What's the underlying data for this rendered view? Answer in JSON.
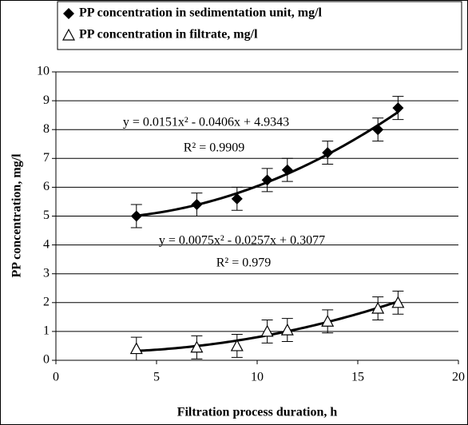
{
  "chart_data": {
    "type": "scatter",
    "x_label": "Filtration process duration, h",
    "y_label": "PP concentration, mg/l",
    "xlim": [
      0,
      20
    ],
    "xticks": [
      0,
      5,
      10,
      15,
      20
    ],
    "ylim": [
      0,
      10
    ],
    "yticks": [
      0,
      1,
      2,
      3,
      4,
      5,
      6,
      7,
      8,
      9,
      10
    ],
    "grid": true,
    "legend": "top",
    "series": [
      {
        "name": "PP concentration in sedimentation unit, mg/l",
        "marker": "diamond",
        "color": "#000000",
        "x": [
          4,
          7,
          9,
          10.5,
          11.5,
          13.5,
          16,
          17
        ],
        "values": [
          5.0,
          5.4,
          5.6,
          6.25,
          6.6,
          7.2,
          8.0,
          8.75
        ],
        "errors": [
          0.4,
          0.4,
          0.4,
          0.4,
          0.4,
          0.4,
          0.4,
          0.4
        ],
        "trendline": {
          "coefficients": [
            0.0151,
            -0.0406,
            4.9343
          ],
          "equation": "y = 0.0151x² - 0.0406x + 4.9343",
          "r_squared": "R² = 0.9909"
        }
      },
      {
        "name": "PP concentration in filtrate, mg/l",
        "marker": "triangle",
        "color": "#000000",
        "x": [
          4,
          7,
          9,
          10.5,
          11.5,
          13.5,
          16,
          17
        ],
        "values": [
          0.4,
          0.45,
          0.5,
          1.0,
          1.05,
          1.35,
          1.8,
          2.0
        ],
        "errors": [
          0.4,
          0.4,
          0.4,
          0.4,
          0.4,
          0.4,
          0.4,
          0.4
        ],
        "trendline": {
          "coefficients": [
            0.0075,
            -0.0257,
            0.3077
          ],
          "equation": "y = 0.0075x² - 0.0257x + 0.3077",
          "r_squared": "R² = 0.979"
        }
      }
    ]
  }
}
